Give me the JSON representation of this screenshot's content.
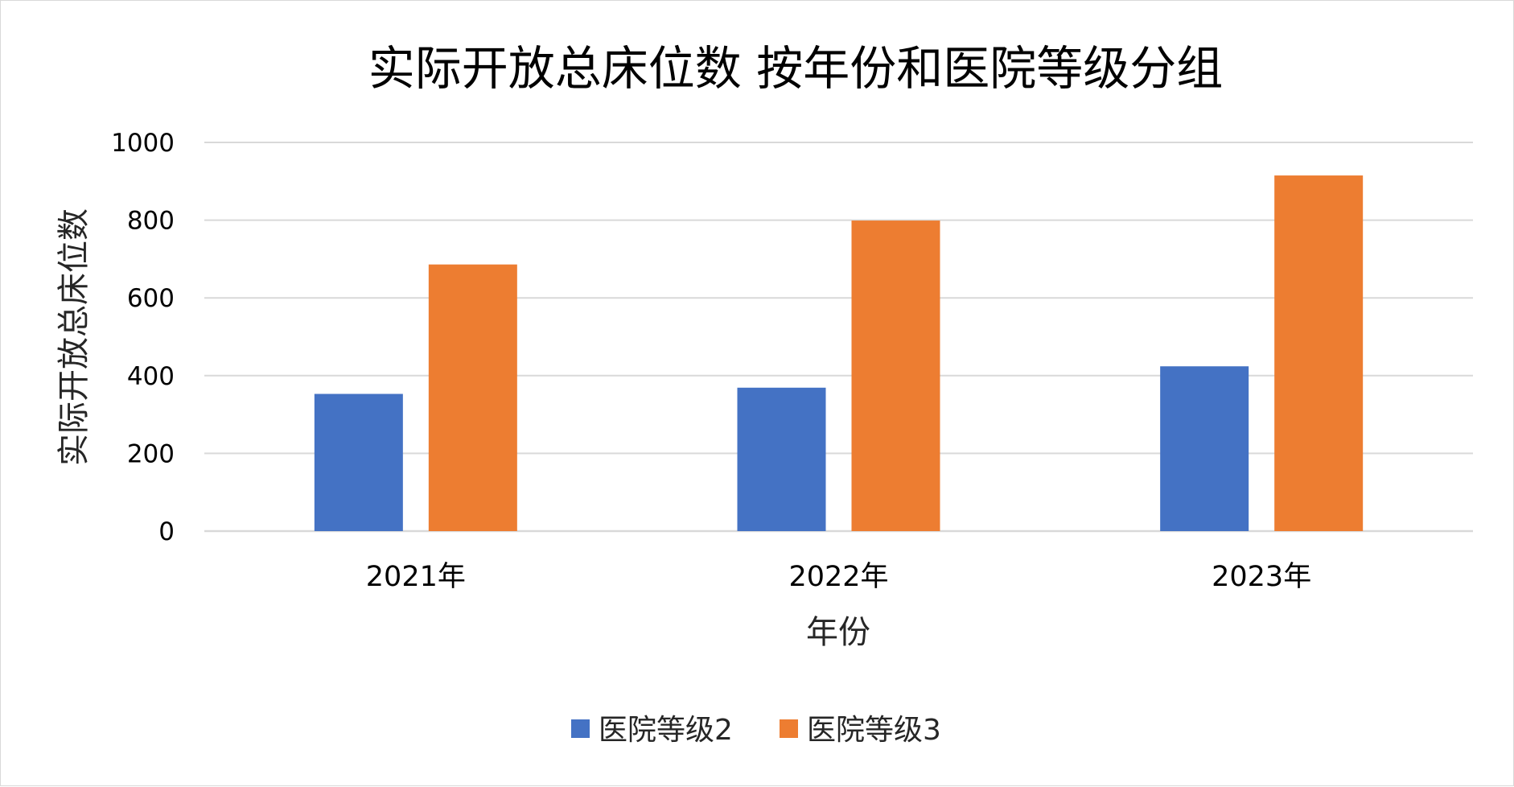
{
  "chart_data": {
    "type": "bar",
    "title": "实际开放总床位数 按年份和医院等级分组",
    "xlabel": "年份",
    "ylabel": "实际开放总床位数",
    "categories": [
      "2021年",
      "2022年",
      "2023年"
    ],
    "series": [
      {
        "name": "医院等级2",
        "color": "#4472c4",
        "values": [
          353,
          369,
          424
        ]
      },
      {
        "name": "医院等级3",
        "color": "#ed7d31",
        "values": [
          686,
          799,
          915
        ]
      }
    ],
    "ylim": [
      0,
      1000
    ],
    "yticks": [
      "0",
      "200",
      "400",
      "600",
      "800",
      "1000"
    ],
    "grid": true,
    "gridline_color": "#d9d9d9",
    "legend_position": "bottom"
  }
}
